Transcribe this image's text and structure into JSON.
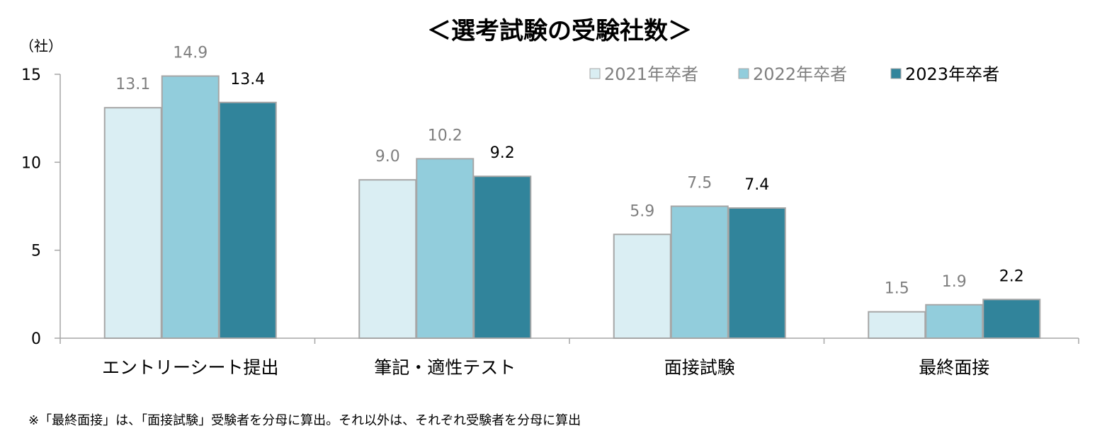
{
  "chart_data": {
    "type": "bar",
    "title": "＜選考試験の受験社数＞",
    "unit_label": "（社）",
    "categories": [
      "エントリーシート提出",
      "筆記・適性テスト",
      "面接試験",
      "最終面接"
    ],
    "series": [
      {
        "name": "2021年卒者",
        "values": [
          13.1,
          9.0,
          5.9,
          1.5
        ],
        "labels": [
          "13.1",
          "9.0",
          "5.9",
          "1.5"
        ],
        "color": "#daeef3",
        "label_color": "#7f7f7f"
      },
      {
        "name": "2022年卒者",
        "values": [
          14.9,
          10.2,
          7.5,
          1.9
        ],
        "labels": [
          "14.9",
          "10.2",
          "7.5",
          "1.9"
        ],
        "color": "#92cddc",
        "label_color": "#7f7f7f"
      },
      {
        "name": "2023年卒者",
        "values": [
          13.4,
          9.2,
          7.4,
          2.2
        ],
        "labels": [
          "13.4",
          "9.2",
          "7.4",
          "2.2"
        ],
        "color": "#31849b",
        "label_color": "#000000"
      }
    ],
    "yticks": [
      "0",
      "5",
      "10",
      "15"
    ],
    "ylim": [
      0,
      15
    ],
    "grid": false,
    "legend": "top-right"
  },
  "footnote": "※「最終面接」は、「面接試験」受験者を分母に算出。それ以外は、それぞれ受験者を分母に算出"
}
